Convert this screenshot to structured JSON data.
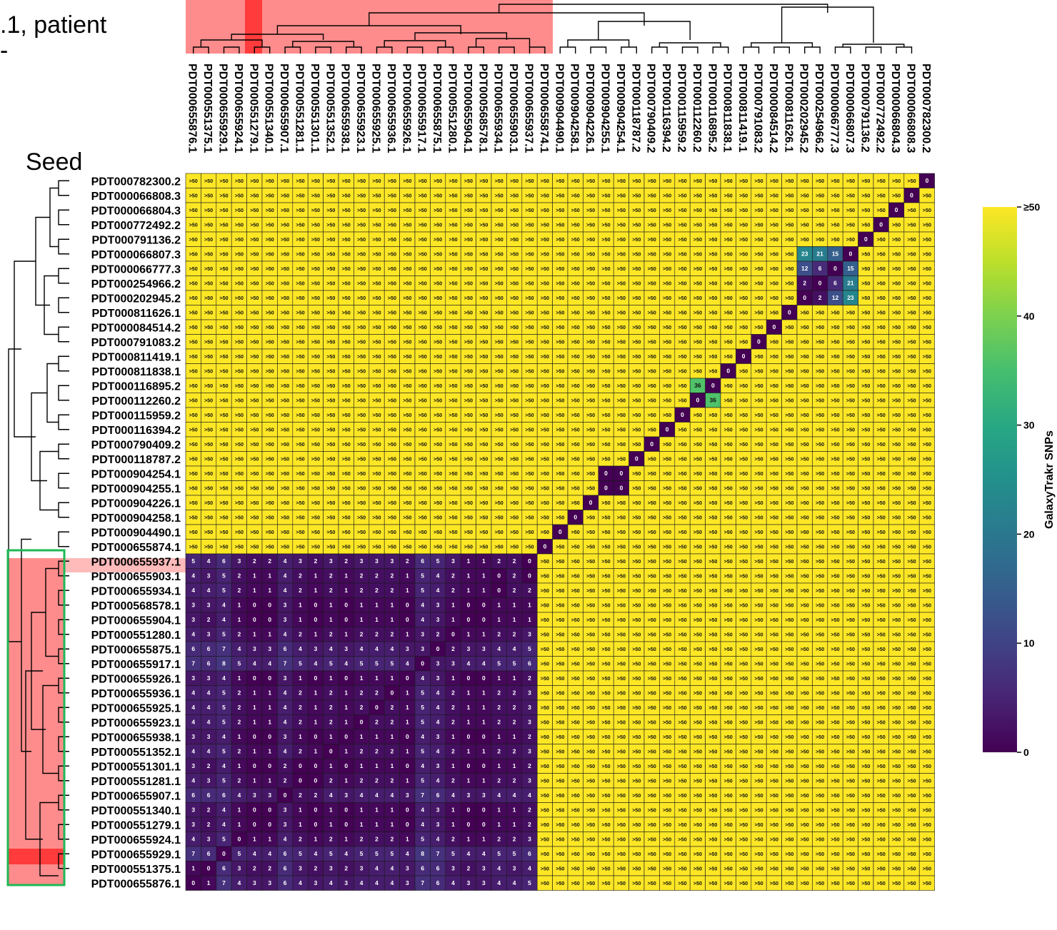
{
  "header_fragments": {
    "line1": ".1, patient",
    "line2": "-",
    "seed": "Seed"
  },
  "colorbar": {
    "label": "GalaxyTrakr SNPs",
    "ticks": [
      {
        "value": 50,
        "label": "≥50"
      },
      {
        "value": 40,
        "label": "40"
      },
      {
        "value": 30,
        "label": "30"
      },
      {
        "value": 20,
        "label": "20"
      },
      {
        "value": 10,
        "label": "10"
      },
      {
        "value": 0,
        "label": "0"
      }
    ]
  },
  "colors": {
    "highlight": "#ff8c8c",
    "seed_highlight": "#ff3b3b",
    "cluster_box": "#1db954",
    "viridis_low": "#440154",
    "viridis_high": "#fde725",
    "cell_border": "#1a1a1a"
  },
  "chart_data": {
    "type": "heatmap",
    "title": "",
    "value_label": "GalaxyTrakr SNPs",
    "cap": 50,
    "cap_display": ">50",
    "range": [
      0,
      50
    ],
    "colormap": "viridis",
    "rows": [
      "PDT000782300.2",
      "PDT000066808.3",
      "PDT000066804.3",
      "PDT000772492.2",
      "PDT000791136.2",
      "PDT000066807.3",
      "PDT000066777.3",
      "PDT000254966.2",
      "PDT000202945.2",
      "PDT000811626.1",
      "PDT000084514.2",
      "PDT000791083.2",
      "PDT000811419.1",
      "PDT000811838.1",
      "PDT000116895.2",
      "PDT000112260.2",
      "PDT000115959.2",
      "PDT000116394.2",
      "PDT000790409.2",
      "PDT000118787.2",
      "PDT000904254.1",
      "PDT000904255.1",
      "PDT000904226.1",
      "PDT000904258.1",
      "PDT000904490.1",
      "PDT000655874.1",
      "PDT000655937.1",
      "PDT000655903.1",
      "PDT000655934.1",
      "PDT000568578.1",
      "PDT000655904.1",
      "PDT000551280.1",
      "PDT000655875.1",
      "PDT000655917.1",
      "PDT000655926.1",
      "PDT000655936.1",
      "PDT000655925.1",
      "PDT000655923.1",
      "PDT000655938.1",
      "PDT000551352.1",
      "PDT000551301.1",
      "PDT000551281.1",
      "PDT000655907.1",
      "PDT000551340.1",
      "PDT000551279.1",
      "PDT000655924.1",
      "PDT000655929.1",
      "PDT000551375.1",
      "PDT000655876.1"
    ],
    "columns": [
      "PDT000655876.1",
      "PDT000551375.1",
      "PDT000655929.1",
      "PDT000655924.1",
      "PDT000551279.1",
      "PDT000551340.1",
      "PDT000655907.1",
      "PDT000551281.1",
      "PDT000551301.1",
      "PDT000551352.1",
      "PDT000655938.1",
      "PDT000655923.1",
      "PDT000655925.1",
      "PDT000655936.1",
      "PDT000655926.1",
      "PDT000655917.1",
      "PDT000655875.1",
      "PDT000551280.1",
      "PDT000655904.1",
      "PDT000568578.1",
      "PDT000655934.1",
      "PDT000655903.1",
      "PDT000655937.1",
      "PDT000655874.1",
      "PDT000904490.1",
      "PDT000904258.1",
      "PDT000904226.1",
      "PDT000904255.1",
      "PDT000904254.1",
      "PDT000118787.2",
      "PDT000790409.2",
      "PDT000116394.2",
      "PDT000115959.2",
      "PDT000112260.2",
      "PDT000116895.2",
      "PDT000811838.1",
      "PDT000811419.1",
      "PDT000791083.2",
      "PDT000084514.2",
      "PDT000811626.1",
      "PDT000202945.2",
      "PDT000254966.2",
      "PDT000066777.3",
      "PDT000066807.3",
      "PDT000791136.2",
      "PDT000772492.2",
      "PDT000066804.3",
      "PDT000066808.3",
      "PDT000782300.2"
    ],
    "cluster_values": [
      [
        "5",
        "4",
        "6",
        "3",
        "2",
        "2",
        "4",
        "3",
        "2",
        "3",
        "2",
        "3",
        "3",
        "3",
        "2",
        "6",
        "5",
        "3",
        "1",
        "1",
        "2",
        "2",
        "0"
      ],
      [
        "4",
        "3",
        "5",
        "2",
        "1",
        "1",
        "4",
        "2",
        "1",
        "2",
        "1",
        "2",
        "2",
        "2",
        "1",
        "5",
        "4",
        "2",
        "1",
        "1",
        "0",
        "2",
        "0"
      ],
      [
        "4",
        "4",
        "5",
        "2",
        "1",
        "1",
        "4",
        "2",
        "1",
        "2",
        "1",
        "2",
        "2",
        "2",
        "1",
        "5",
        "4",
        "2",
        "1",
        "1",
        "0",
        "2",
        "2"
      ],
      [
        "3",
        "3",
        "4",
        "1",
        "0",
        "0",
        "3",
        "1",
        "0",
        "1",
        "0",
        "1",
        "1",
        "1",
        "0",
        "4",
        "3",
        "1",
        "0",
        "0",
        "1",
        "1",
        "1"
      ],
      [
        "3",
        "2",
        "4",
        "1",
        "0",
        "0",
        "3",
        "1",
        "0",
        "1",
        "0",
        "1",
        "1",
        "1",
        "0",
        "4",
        "3",
        "1",
        "0",
        "0",
        "1",
        "1",
        "1"
      ],
      [
        "4",
        "3",
        "5",
        "2",
        "1",
        "1",
        "4",
        "2",
        "1",
        "2",
        "1",
        "2",
        "2",
        "2",
        "1",
        "3",
        "2",
        "0",
        "1",
        "1",
        "2",
        "2",
        "3"
      ],
      [
        "6",
        "6",
        "7",
        "4",
        "3",
        "3",
        "6",
        "4",
        "3",
        "4",
        "3",
        "4",
        "4",
        "4",
        "3",
        "3",
        "0",
        "2",
        "3",
        "3",
        "4",
        "4",
        "5"
      ],
      [
        "7",
        "6",
        "8",
        "5",
        "4",
        "4",
        "7",
        "5",
        "4",
        "5",
        "4",
        "5",
        "5",
        "5",
        "4",
        "0",
        "3",
        "3",
        "4",
        "4",
        "5",
        "5",
        "6"
      ],
      [
        "3",
        "3",
        "4",
        "1",
        "0",
        "0",
        "3",
        "1",
        "0",
        "1",
        "0",
        "1",
        "1",
        "1",
        "0",
        "4",
        "3",
        "1",
        "0",
        "0",
        "1",
        "1",
        "2"
      ],
      [
        "4",
        "4",
        "5",
        "2",
        "1",
        "1",
        "4",
        "2",
        "1",
        "2",
        "1",
        "2",
        "2",
        "0",
        "1",
        "5",
        "4",
        "2",
        "1",
        "1",
        "2",
        "2",
        "3"
      ],
      [
        "4",
        "4",
        "5",
        "2",
        "1",
        "1",
        "4",
        "2",
        "1",
        "2",
        "1",
        "2",
        "0",
        "2",
        "1",
        "5",
        "4",
        "2",
        "1",
        "1",
        "2",
        "2",
        "3"
      ],
      [
        "4",
        "4",
        "5",
        "2",
        "1",
        "1",
        "4",
        "2",
        "1",
        "2",
        "1",
        "0",
        "2",
        "2",
        "1",
        "5",
        "4",
        "2",
        "1",
        "1",
        "2",
        "2",
        "3"
      ],
      [
        "3",
        "3",
        "4",
        "1",
        "0",
        "0",
        "3",
        "1",
        "0",
        "1",
        "0",
        "1",
        "1",
        "1",
        "0",
        "4",
        "3",
        "1",
        "0",
        "0",
        "1",
        "1",
        "2"
      ],
      [
        "4",
        "4",
        "5",
        "2",
        "1",
        "1",
        "4",
        "2",
        "1",
        "0",
        "1",
        "2",
        "2",
        "2",
        "1",
        "5",
        "4",
        "2",
        "1",
        "1",
        "2",
        "2",
        "3"
      ],
      [
        "3",
        "2",
        "4",
        "1",
        "0",
        "0",
        "2",
        "0",
        "0",
        "1",
        "0",
        "1",
        "1",
        "1",
        "0",
        "4",
        "3",
        "1",
        "0",
        "0",
        "1",
        "1",
        "2"
      ],
      [
        "4",
        "3",
        "5",
        "2",
        "1",
        "1",
        "2",
        "0",
        "0",
        "2",
        "1",
        "2",
        "2",
        "2",
        "1",
        "5",
        "4",
        "2",
        "1",
        "1",
        "2",
        "2",
        "3"
      ],
      [
        "6",
        "6",
        "6",
        "4",
        "3",
        "3",
        "0",
        "2",
        "2",
        "4",
        "3",
        "4",
        "4",
        "4",
        "3",
        "7",
        "6",
        "4",
        "3",
        "3",
        "4",
        "4",
        "4"
      ],
      [
        "3",
        "2",
        "4",
        "1",
        "0",
        "0",
        "3",
        "1",
        "0",
        "1",
        "0",
        "1",
        "1",
        "1",
        "0",
        "4",
        "3",
        "1",
        "0",
        "0",
        "1",
        "1",
        "2"
      ],
      [
        "3",
        "2",
        "4",
        "1",
        "0",
        "0",
        "3",
        "1",
        "0",
        "1",
        "0",
        "1",
        "1",
        "1",
        "0",
        "4",
        "3",
        "1",
        "0",
        "0",
        "1",
        "1",
        "2"
      ],
      [
        "4",
        "3",
        "5",
        "0",
        "1",
        "1",
        "4",
        "2",
        "1",
        "2",
        "1",
        "2",
        "2",
        "2",
        "1",
        "5",
        "4",
        "2",
        "1",
        "1",
        "2",
        "2",
        "3"
      ],
      [
        "7",
        "6",
        "0",
        "5",
        "4",
        "4",
        "6",
        "5",
        "4",
        "5",
        "4",
        "5",
        "5",
        "5",
        "4",
        "8",
        "7",
        "5",
        "4",
        "4",
        "5",
        "5",
        "6"
      ],
      [
        "1",
        "0",
        "6",
        "3",
        "2",
        "2",
        "6",
        "3",
        "2",
        "3",
        "2",
        "3",
        "4",
        "4",
        "3",
        "6",
        "6",
        "3",
        "2",
        "3",
        "4",
        "3",
        "4"
      ],
      [
        "0",
        "1",
        "7",
        "4",
        "3",
        "3",
        "6",
        "4",
        "3",
        "4",
        "3",
        "4",
        "4",
        "4",
        "3",
        "7",
        "6",
        "4",
        "3",
        "3",
        "4",
        "4",
        "5"
      ]
    ],
    "small_cluster_entries": [
      {
        "row": "PDT000066807.3",
        "col": "PDT000202945.2",
        "value": "23"
      },
      {
        "row": "PDT000066807.3",
        "col": "PDT000254966.2",
        "value": "21"
      },
      {
        "row": "PDT000066807.3",
        "col": "PDT000066777.3",
        "value": "15"
      },
      {
        "row": "PDT000066777.3",
        "col": "PDT000202945.2",
        "value": "12"
      },
      {
        "row": "PDT000066777.3",
        "col": "PDT000254966.2",
        "value": "6"
      },
      {
        "row": "PDT000254966.2",
        "col": "PDT000202945.2",
        "value": "2"
      },
      {
        "row": "PDT000116895.2",
        "col": "PDT000112260.2",
        "value": "36"
      },
      {
        "row": "PDT000904254.1",
        "col": "PDT000904255.1",
        "value": "0"
      }
    ]
  }
}
